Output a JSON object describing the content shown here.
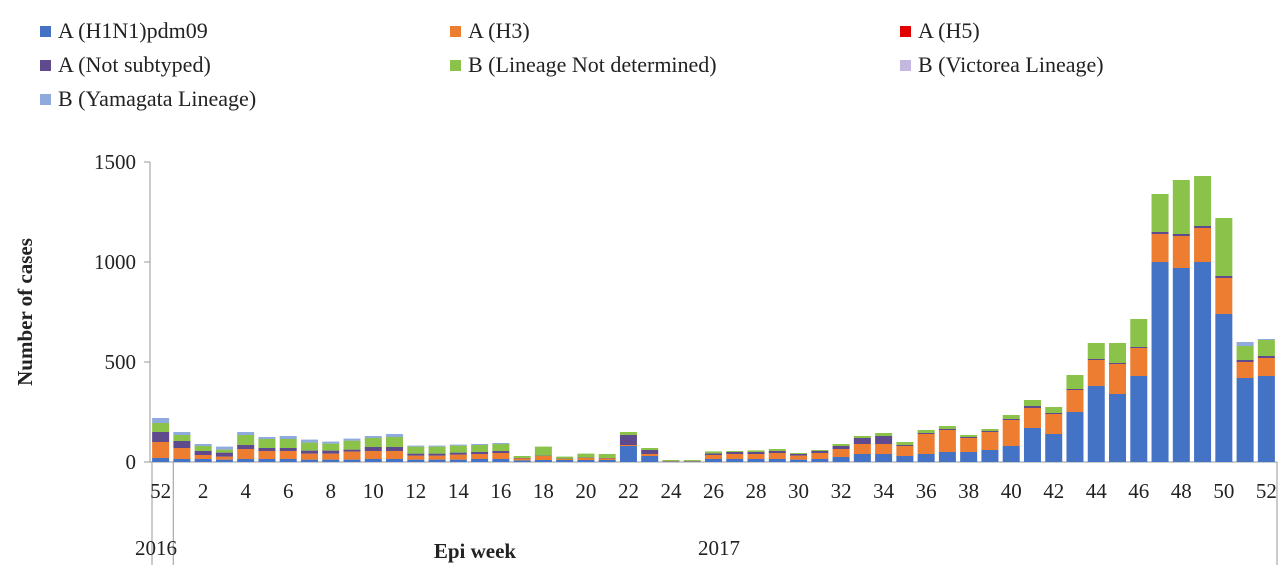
{
  "chart_data": {
    "type": "bar",
    "stacked": true,
    "title": "",
    "xlabel": "Epi week",
    "ylabel": "Number of cases",
    "ylim": [
      0,
      1500
    ],
    "yticks": [
      0,
      500,
      1000,
      1500
    ],
    "year_labels": [
      "2016",
      "2017"
    ],
    "x_tick_labels": [
      "52",
      "2",
      "4",
      "6",
      "8",
      "10",
      "12",
      "14",
      "16",
      "18",
      "20",
      "22",
      "24",
      "26",
      "28",
      "30",
      "32",
      "34",
      "36",
      "38",
      "40",
      "42",
      "44",
      "46",
      "48",
      "50",
      "52"
    ],
    "categories": [
      "52",
      "1",
      "2",
      "3",
      "4",
      "5",
      "6",
      "7",
      "8",
      "9",
      "10",
      "11",
      "12",
      "13",
      "14",
      "15",
      "16",
      "17",
      "18",
      "19",
      "20",
      "21",
      "22",
      "23",
      "24",
      "25",
      "26",
      "27",
      "28",
      "29",
      "30",
      "31",
      "32",
      "33",
      "34",
      "35",
      "36",
      "37",
      "38",
      "39",
      "40",
      "41",
      "42",
      "43",
      "44",
      "45",
      "46",
      "47",
      "48",
      "49",
      "50",
      "51",
      "52"
    ],
    "legend_position": "top",
    "series": [
      {
        "name": "A (H1N1)pdm09",
        "color": "#4472C4",
        "values": [
          20,
          15,
          15,
          12,
          15,
          15,
          15,
          12,
          12,
          12,
          15,
          15,
          12,
          12,
          12,
          15,
          15,
          8,
          10,
          10,
          10,
          10,
          80,
          30,
          3,
          3,
          15,
          15,
          15,
          15,
          12,
          15,
          25,
          40,
          40,
          30,
          40,
          50,
          50,
          60,
          80,
          170,
          140,
          250,
          380,
          340,
          430,
          1000,
          970,
          1000,
          740,
          420,
          430
        ]
      },
      {
        "name": "A (H3)",
        "color": "#ED7D31",
        "values": [
          80,
          55,
          20,
          15,
          50,
          40,
          40,
          30,
          30,
          40,
          40,
          40,
          20,
          20,
          25,
          25,
          30,
          10,
          20,
          5,
          10,
          8,
          5,
          10,
          2,
          2,
          20,
          25,
          25,
          30,
          20,
          30,
          40,
          50,
          50,
          50,
          100,
          110,
          70,
          90,
          130,
          100,
          100,
          110,
          130,
          150,
          140,
          140,
          160,
          170,
          180,
          80,
          90
        ]
      },
      {
        "name": "A (H5)",
        "color": "#E00000",
        "values": [
          0,
          0,
          0,
          0,
          0,
          0,
          0,
          0,
          0,
          0,
          0,
          0,
          0,
          0,
          0,
          0,
          0,
          0,
          0,
          0,
          0,
          0,
          0,
          0,
          0,
          0,
          0,
          0,
          0,
          0,
          0,
          0,
          0,
          0,
          0,
          0,
          0,
          0,
          0,
          0,
          0,
          0,
          0,
          0,
          0,
          0,
          0,
          0,
          0,
          0,
          0,
          0,
          0
        ]
      },
      {
        "name": "A (Not subtyped)",
        "color": "#5E4A8C",
        "values": [
          50,
          35,
          20,
          20,
          20,
          15,
          15,
          15,
          15,
          10,
          20,
          20,
          10,
          10,
          10,
          10,
          10,
          2,
          2,
          2,
          2,
          2,
          50,
          20,
          0,
          0,
          8,
          10,
          10,
          10,
          8,
          10,
          15,
          30,
          40,
          5,
          5,
          5,
          5,
          5,
          5,
          10,
          5,
          5,
          5,
          5,
          5,
          10,
          10,
          10,
          10,
          10,
          10
        ]
      },
      {
        "name": "B (Lineage Not determined)",
        "color": "#8BC34A",
        "values": [
          45,
          30,
          25,
          15,
          50,
          45,
          45,
          40,
          35,
          45,
          45,
          50,
          35,
          35,
          35,
          35,
          35,
          10,
          45,
          10,
          20,
          20,
          15,
          10,
          5,
          5,
          10,
          5,
          8,
          10,
          5,
          5,
          10,
          10,
          15,
          15,
          15,
          15,
          10,
          10,
          20,
          30,
          30,
          70,
          80,
          100,
          140,
          190,
          270,
          250,
          290,
          70,
          80
        ]
      },
      {
        "name": "B (Victorea Lineage)",
        "color": "#C5B8E0",
        "values": [
          0,
          0,
          0,
          0,
          0,
          0,
          0,
          0,
          0,
          0,
          0,
          0,
          0,
          0,
          0,
          0,
          0,
          0,
          0,
          0,
          0,
          0,
          0,
          0,
          0,
          0,
          0,
          0,
          0,
          0,
          0,
          0,
          0,
          0,
          0,
          0,
          0,
          0,
          0,
          0,
          0,
          0,
          0,
          0,
          0,
          0,
          0,
          0,
          0,
          0,
          0,
          0,
          0
        ]
      },
      {
        "name": "B (Yamagata Lineage)",
        "color": "#8FAADC",
        "values": [
          25,
          15,
          10,
          15,
          15,
          10,
          15,
          15,
          10,
          10,
          10,
          15,
          5,
          5,
          5,
          5,
          5,
          0,
          0,
          0,
          0,
          0,
          0,
          0,
          0,
          0,
          0,
          0,
          0,
          0,
          0,
          0,
          0,
          0,
          0,
          0,
          0,
          0,
          0,
          0,
          0,
          0,
          0,
          0,
          0,
          0,
          0,
          0,
          0,
          0,
          0,
          20,
          5
        ]
      }
    ]
  }
}
